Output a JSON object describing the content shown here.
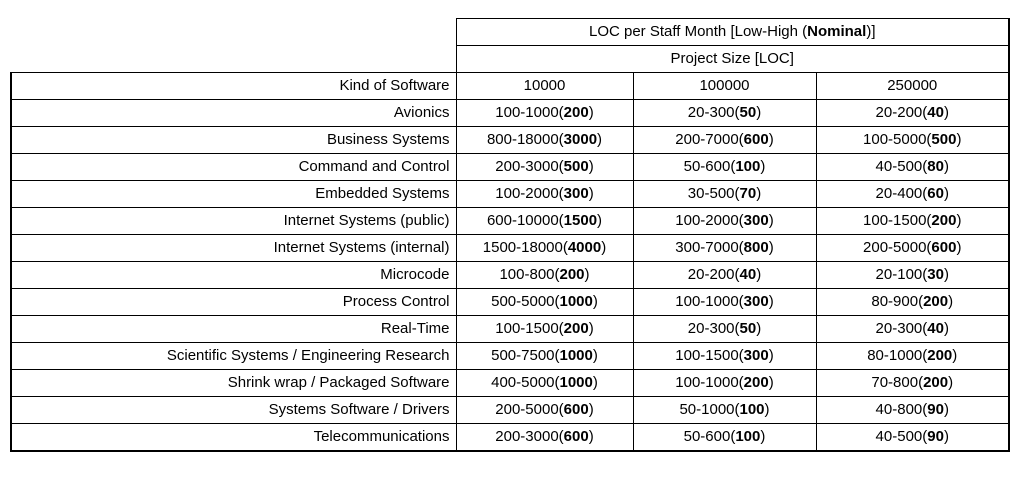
{
  "table": {
    "title": {
      "prefix": "LOC per Staff Month [Low-High (",
      "bold": "Nominal",
      "suffix": ")]"
    },
    "subtitle": "Project Size [LOC]",
    "row_header_label": "Kind of Software",
    "columns": [
      "10000",
      "100000",
      "250000"
    ],
    "rows": [
      {
        "name": "Avionics",
        "cells": [
          "100-1000(200)",
          "20-300(50)",
          "20-200(40)"
        ]
      },
      {
        "name": "Business Systems",
        "cells": [
          "800-18000(3000)",
          "200-7000(600)",
          "100-5000(500)"
        ]
      },
      {
        "name": "Command and Control",
        "cells": [
          "200-3000(500)",
          "50-600(100)",
          "40-500(80)"
        ]
      },
      {
        "name": "Embedded Systems",
        "cells": [
          "100-2000(300)",
          "30-500(70)",
          "20-400(60)"
        ]
      },
      {
        "name": "Internet Systems (public)",
        "cells": [
          "600-10000(1500)",
          "100-2000(300)",
          "100-1500(200)"
        ]
      },
      {
        "name": "Internet Systems (internal)",
        "cells": [
          "1500-18000(4000)",
          "300-7000(800)",
          "200-5000(600)"
        ]
      },
      {
        "name": "Microcode",
        "cells": [
          "100-800(200)",
          "20-200(40)",
          "20-100(30)"
        ]
      },
      {
        "name": "Process Control",
        "cells": [
          "500-5000(1000)",
          "100-1000(300)",
          "80-900(200)"
        ]
      },
      {
        "name": "Real-Time",
        "cells": [
          "100-1500(200)",
          "20-300(50)",
          "20-300(40)"
        ]
      },
      {
        "name": "Scientific Systems / Engineering Research",
        "cells": [
          "500-7500(1000)",
          "100-1500(300)",
          "80-1000(200)"
        ]
      },
      {
        "name": "Shrink wrap / Packaged Software",
        "cells": [
          "400-5000(1000)",
          "100-1000(200)",
          "70-800(200)"
        ]
      },
      {
        "name": "Systems Software / Drivers",
        "cells": [
          "200-5000(600)",
          "50-1000(100)",
          "40-800(90)"
        ]
      },
      {
        "name": "Telecommunications",
        "cells": [
          "200-3000(600)",
          "50-600(100)",
          "40-500(90)"
        ]
      }
    ]
  }
}
